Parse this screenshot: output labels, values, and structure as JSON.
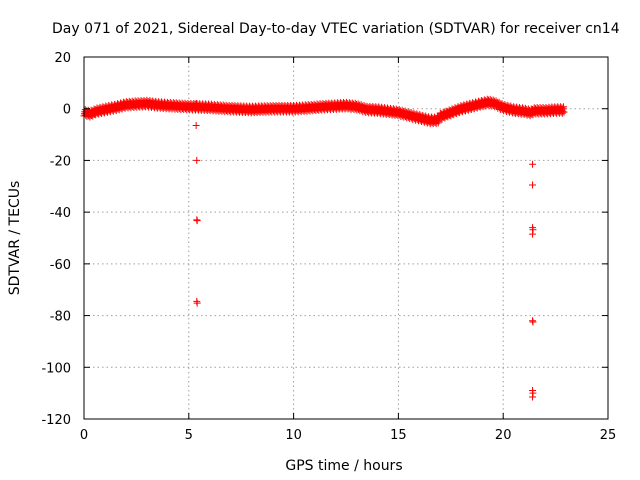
{
  "chart_data": {
    "type": "scatter",
    "title": "Day 071 of 2021, Sidereal Day-to-day VTEC variation (SDTVAR) for receiver cn14",
    "xlabel": "GPS time / hours",
    "ylabel": "SDTVAR / TECUs",
    "xlim": [
      0,
      25
    ],
    "ylim": [
      -120,
      20
    ],
    "xticks": [
      0,
      5,
      10,
      15,
      20,
      25
    ],
    "yticks": [
      20,
      0,
      -20,
      -40,
      -60,
      -80,
      -100,
      -120
    ],
    "grid": true,
    "marker": "+",
    "series_color": "#ff0000",
    "trace": {
      "name": "SDTVAR",
      "x_start": 0.0,
      "x_end": 22.9,
      "sample_step": 0.02,
      "anchors": [
        [
          0.0,
          -1.5
        ],
        [
          0.3,
          -2.0
        ],
        [
          0.6,
          -1.0
        ],
        [
          1.0,
          -0.3
        ],
        [
          1.5,
          0.5
        ],
        [
          2.0,
          1.5
        ],
        [
          2.5,
          1.8
        ],
        [
          3.0,
          2.0
        ],
        [
          3.5,
          1.5
        ],
        [
          4.0,
          1.2
        ],
        [
          4.5,
          1.0
        ],
        [
          5.0,
          0.8
        ],
        [
          5.5,
          0.7
        ],
        [
          6.0,
          0.5
        ],
        [
          7.0,
          0.0
        ],
        [
          8.0,
          -0.3
        ],
        [
          9.0,
          0.0
        ],
        [
          10.0,
          0.0
        ],
        [
          10.5,
          0.2
        ],
        [
          11.0,
          0.5
        ],
        [
          11.5,
          0.8
        ],
        [
          12.0,
          1.0
        ],
        [
          12.5,
          1.2
        ],
        [
          13.0,
          0.8
        ],
        [
          13.5,
          -0.3
        ],
        [
          14.0,
          -0.5
        ],
        [
          14.5,
          -1.0
        ],
        [
          15.0,
          -1.5
        ],
        [
          15.5,
          -2.5
        ],
        [
          16.0,
          -3.5
        ],
        [
          16.5,
          -4.5
        ],
        [
          16.8,
          -4.5
        ],
        [
          17.0,
          -3.0
        ],
        [
          17.5,
          -1.5
        ],
        [
          18.0,
          0.0
        ],
        [
          18.5,
          1.0
        ],
        [
          19.0,
          2.0
        ],
        [
          19.3,
          2.5
        ],
        [
          19.6,
          2.0
        ],
        [
          20.0,
          0.5
        ],
        [
          20.5,
          -0.5
        ],
        [
          21.0,
          -1.0
        ],
        [
          21.3,
          -1.5
        ],
        [
          21.5,
          -0.8
        ],
        [
          22.0,
          -0.8
        ],
        [
          22.5,
          -0.5
        ],
        [
          22.9,
          -0.5
        ]
      ],
      "thickness": 2.5
    },
    "outliers": [
      {
        "x": 5.35,
        "y": 2.0
      },
      {
        "x": 5.35,
        "y": -6.5
      },
      {
        "x": 5.38,
        "y": -20.0
      },
      {
        "x": 5.38,
        "y": -43.0
      },
      {
        "x": 5.4,
        "y": -43.3
      },
      {
        "x": 5.38,
        "y": -74.5
      },
      {
        "x": 5.4,
        "y": -75.2
      },
      {
        "x": 16.9,
        "y": -5.5
      },
      {
        "x": 21.4,
        "y": -21.5
      },
      {
        "x": 21.4,
        "y": -29.5
      },
      {
        "x": 21.4,
        "y": -46.0
      },
      {
        "x": 21.42,
        "y": -46.8
      },
      {
        "x": 21.4,
        "y": -48.5
      },
      {
        "x": 21.4,
        "y": -82.0
      },
      {
        "x": 21.42,
        "y": -82.5
      },
      {
        "x": 21.4,
        "y": -109.0
      },
      {
        "x": 21.42,
        "y": -110.0
      },
      {
        "x": 21.4,
        "y": -111.5
      }
    ]
  }
}
